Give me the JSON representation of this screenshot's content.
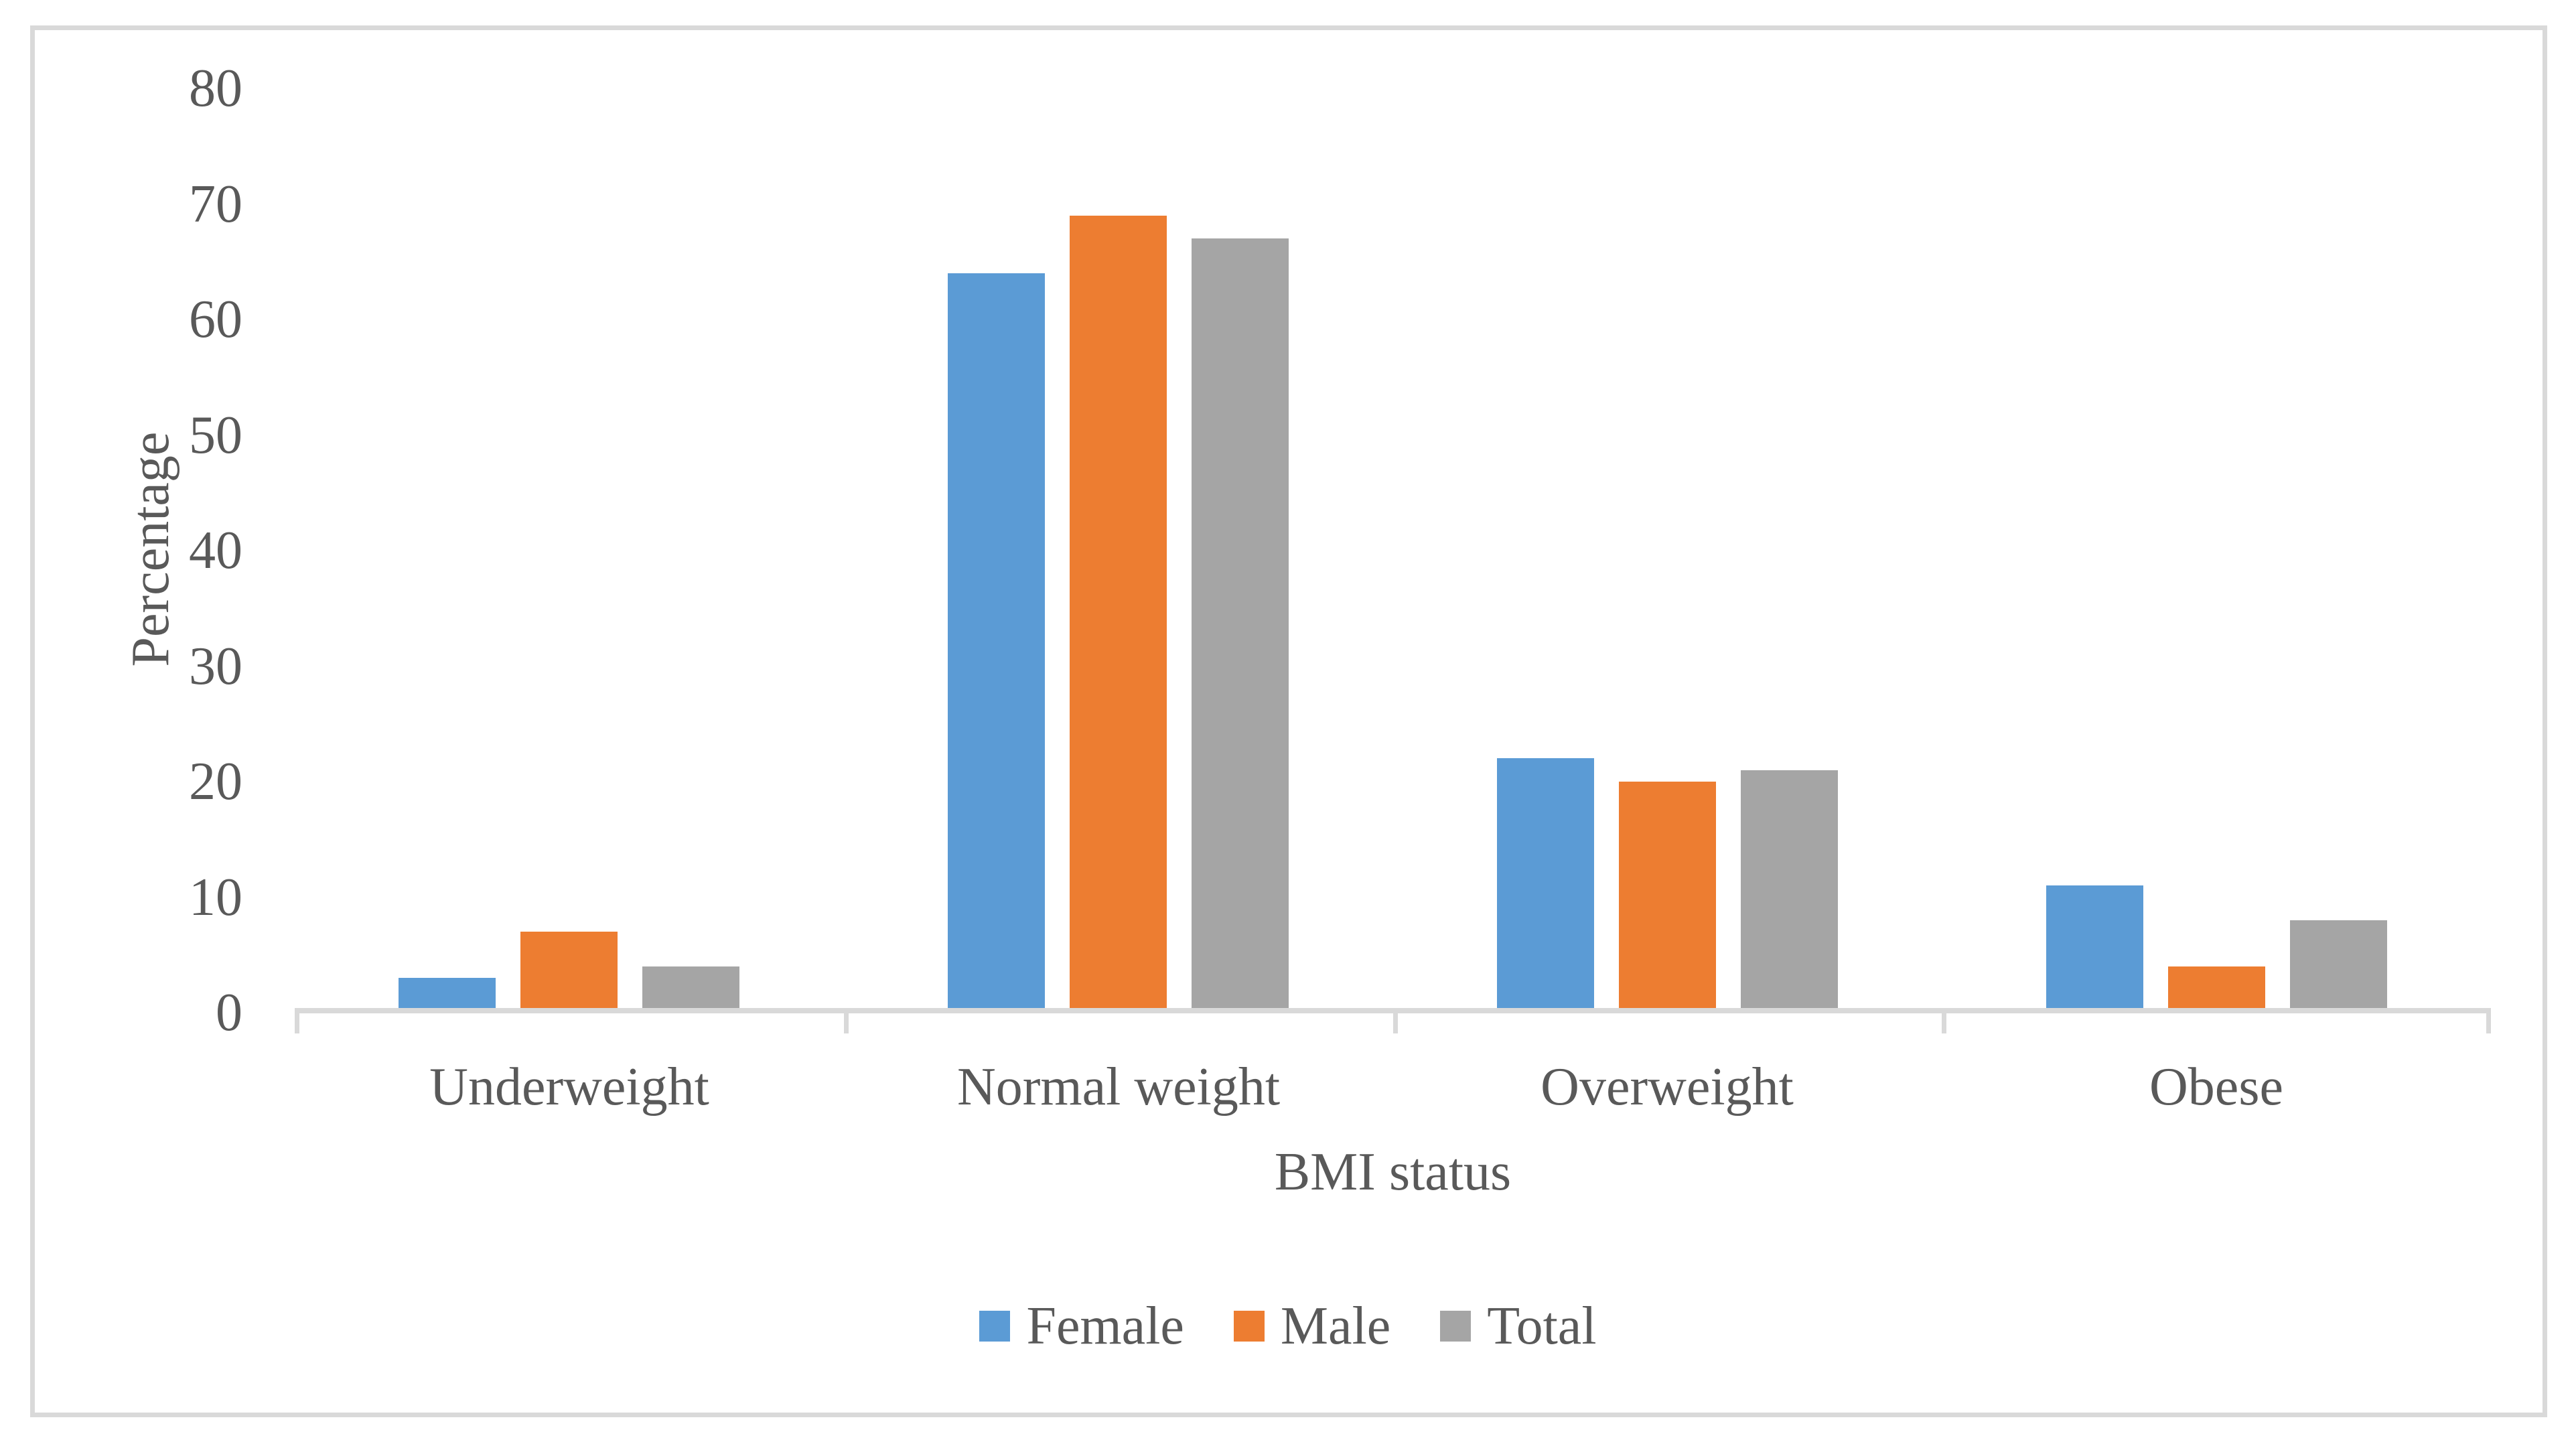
{
  "chart_data": {
    "type": "bar",
    "title": "",
    "categories": [
      "Underweight",
      "Normal weight",
      "Overweight",
      "Obese"
    ],
    "series": [
      {
        "name": "Female",
        "color": "#5B9BD5",
        "values": [
          3,
          64,
          22,
          11
        ]
      },
      {
        "name": "Male",
        "color": "#ED7D31",
        "values": [
          7,
          69,
          20,
          4
        ]
      },
      {
        "name": "Total",
        "color": "#A5A5A5",
        "values": [
          4,
          67,
          21,
          8
        ]
      }
    ],
    "xlabel": "BMI status",
    "ylabel": "Percentage",
    "ylim": [
      0,
      80
    ],
    "ytick_step": 10,
    "ytick_labels": [
      "0",
      "10",
      "20",
      "30",
      "40",
      "50",
      "60",
      "70",
      "80"
    ],
    "grid": false,
    "legend_position": "bottom",
    "axis_line_color": "#D9D9D9",
    "frame_border_color": "#D9D9D9",
    "text_color": "#595959"
  }
}
